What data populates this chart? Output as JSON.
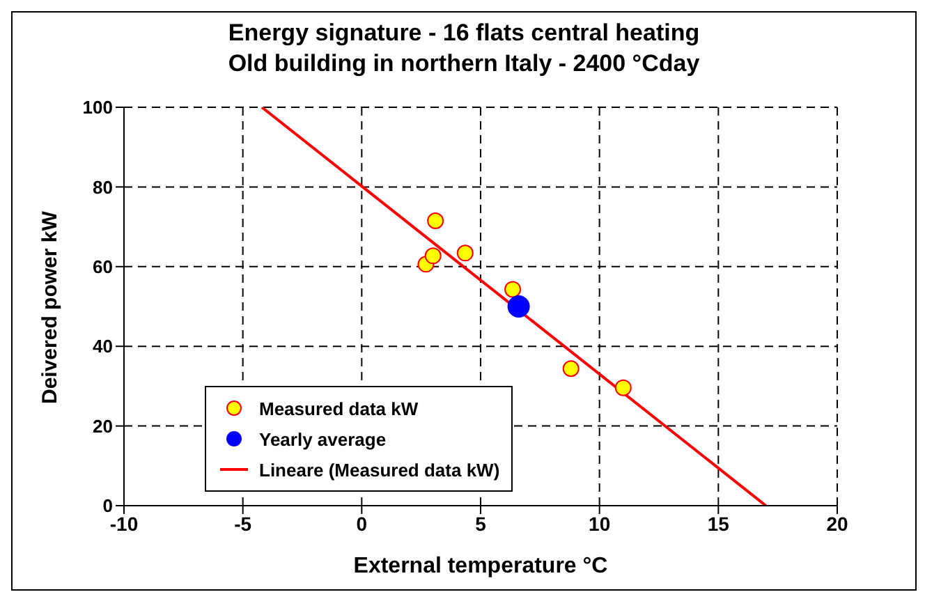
{
  "chart_data": {
    "type": "scatter",
    "title": "Energy signature - 16 flats central heating",
    "subtitle": "Old building in northern Italy - 2400 °Cday",
    "xlabel": "External temperature °C",
    "ylabel": "Deivered power kW",
    "xlim": [
      -10,
      20
    ],
    "xticks": [
      -10,
      -5,
      0,
      5,
      10,
      15,
      20
    ],
    "ylim": [
      0,
      100
    ],
    "yticks": [
      0,
      20,
      40,
      60,
      80,
      100
    ],
    "grid": true,
    "legend": "bottom left",
    "marker": "circle",
    "series": [
      {
        "name": "Measured data kW",
        "color": "#ffff00",
        "x": [
          2.7,
          3.0,
          3.1,
          4.35,
          6.35,
          8.8,
          11.0
        ],
        "values": [
          60.6,
          62.7,
          71.5,
          63.4,
          54.3,
          34.4,
          29.6
        ]
      },
      {
        "name": "Yearly average",
        "color": "#0000ff",
        "x": [
          6.6
        ],
        "values": [
          50
        ]
      },
      {
        "name": "Lineare (Measured data kW)",
        "type": "line",
        "marker": "none",
        "color": "#ff0000",
        "x": [
          -4.2,
          17
        ],
        "values": [
          100,
          0
        ]
      }
    ]
  }
}
